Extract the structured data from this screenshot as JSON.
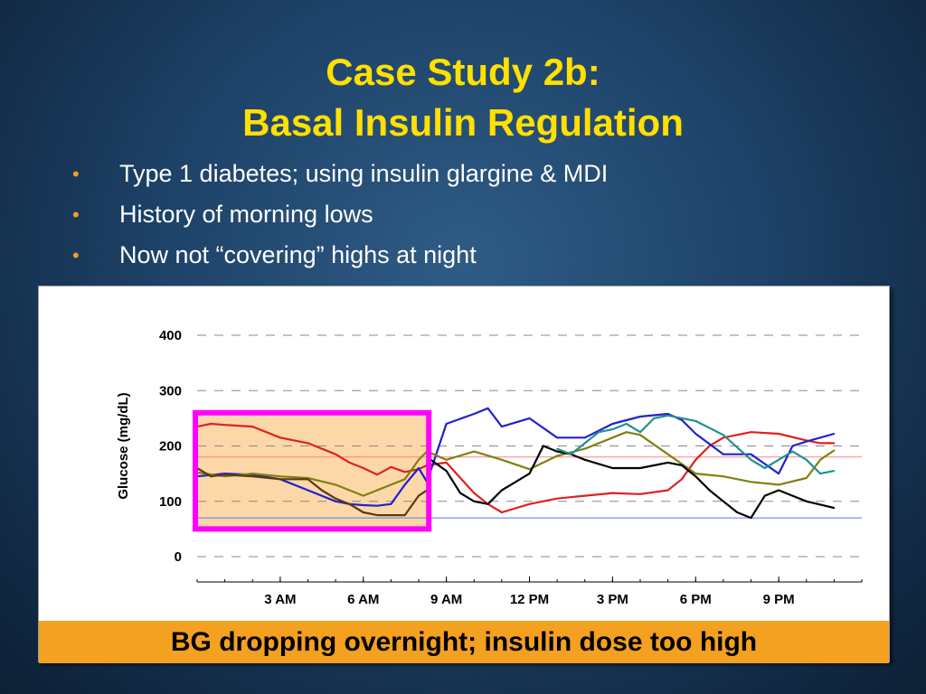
{
  "slide": {
    "title_line1": "Case Study 2b:",
    "title_line2": "Basal Insulin Regulation",
    "bullets": [
      "Type 1 diabetes; using insulin glargine & MDI",
      "History of morning lows",
      "Now not “covering” highs at night"
    ],
    "bullet_symbol": "•",
    "caption": "BG dropping overnight; insulin dose too high",
    "colors": {
      "title": "#ffe000",
      "bullet_text": "#ffffff",
      "bullet_symbol": "#f0a020",
      "caption_bar": "#f4a020",
      "highlight_border": "#ff00ff",
      "highlight_fill": "#fcd8a8",
      "target_upper_line": "#ff8080",
      "target_lower_line": "#6070ff"
    }
  },
  "chart_data": {
    "type": "line",
    "title": "",
    "ylabel": "Glucose  (mg/dL)",
    "xlabel": "",
    "ylim": [
      0,
      400
    ],
    "yticks": [
      0,
      100,
      200,
      300,
      400
    ],
    "xlim": [
      0,
      24
    ],
    "x_unit": "hours after midnight",
    "xticks": [
      {
        "x": 3,
        "label": "3 AM"
      },
      {
        "x": 6,
        "label": "6 AM"
      },
      {
        "x": 9,
        "label": "9 AM"
      },
      {
        "x": 12,
        "label": "12 PM"
      },
      {
        "x": 15,
        "label": "3 PM"
      },
      {
        "x": 18,
        "label": "6 PM"
      },
      {
        "x": 21,
        "label": "9 PM"
      }
    ],
    "grid": "horizontal dashed",
    "target_range": [
      70,
      180
    ],
    "highlight_region": {
      "x": [
        0,
        8.3
      ],
      "y": [
        50,
        260
      ]
    },
    "series": [
      {
        "color": "#e02020",
        "x": [
          0,
          0.5,
          1,
          2,
          3,
          4,
          5,
          5.5,
          6,
          6.5,
          7,
          7.5,
          8,
          8.3,
          9,
          10,
          10.5,
          11,
          12,
          13,
          14,
          15,
          16,
          17,
          17.5,
          18,
          18.5,
          19,
          20,
          21,
          22,
          22.5,
          23
        ],
        "values": [
          235,
          240,
          238,
          235,
          215,
          205,
          185,
          170,
          160,
          148,
          162,
          153,
          158,
          165,
          170,
          115,
          95,
          80,
          95,
          105,
          110,
          115,
          113,
          120,
          140,
          175,
          200,
          215,
          225,
          222,
          210,
          205,
          205
        ]
      },
      {
        "color": "#2020d0",
        "x": [
          0,
          1,
          2,
          3,
          4,
          5,
          5.5,
          6,
          6.5,
          7,
          7.5,
          8,
          8.3,
          9,
          10,
          10.5,
          11,
          12,
          13,
          14,
          15,
          16,
          17,
          17.5,
          18,
          19,
          20,
          21,
          21.5,
          22,
          23
        ],
        "values": [
          145,
          150,
          148,
          140,
          120,
          100,
          95,
          93,
          92,
          95,
          130,
          160,
          135,
          240,
          258,
          268,
          235,
          250,
          215,
          215,
          240,
          253,
          258,
          247,
          222,
          185,
          185,
          150,
          200,
          208,
          222
        ]
      },
      {
        "color": "#808010",
        "x": [
          0,
          1,
          2,
          3,
          4,
          5,
          5.5,
          6,
          6.5,
          7,
          7.5,
          8,
          8.3,
          9,
          10,
          11,
          12,
          13,
          14,
          15,
          15.5,
          16,
          17,
          18,
          19,
          20,
          21,
          22,
          22.5,
          23
        ],
        "values": [
          152,
          145,
          150,
          145,
          142,
          130,
          120,
          110,
          120,
          130,
          140,
          175,
          190,
          175,
          190,
          175,
          158,
          182,
          195,
          215,
          225,
          220,
          185,
          150,
          145,
          135,
          130,
          142,
          175,
          192
        ]
      },
      {
        "color": "#5a3a10",
        "x": [
          0,
          0.5,
          1,
          2,
          3,
          4,
          4.5,
          5,
          5.5,
          6,
          6.5,
          7,
          7.5,
          8,
          8.3
        ],
        "values": [
          160,
          145,
          148,
          145,
          140,
          140,
          120,
          105,
          95,
          80,
          75,
          75,
          75,
          110,
          120
        ]
      },
      {
        "color": "#000000",
        "x": [
          8.3,
          9,
          9.5,
          10,
          10.5,
          11,
          11.5,
          12,
          12.5,
          13,
          13.5,
          14,
          15,
          16,
          17,
          17.5,
          18,
          18.5,
          19,
          19.5,
          20,
          20.5,
          21,
          22,
          23
        ],
        "values": [
          180,
          155,
          115,
          100,
          95,
          120,
          135,
          150,
          200,
          190,
          185,
          175,
          160,
          160,
          170,
          165,
          145,
          120,
          100,
          80,
          70,
          110,
          120,
          100,
          88
        ]
      },
      {
        "color": "#209090",
        "x": [
          13,
          13.5,
          14,
          14.5,
          15,
          15.5,
          16,
          16.5,
          17,
          18,
          19,
          20,
          20.5,
          21,
          21.5,
          22,
          22.5,
          23
        ],
        "values": [
          195,
          185,
          205,
          225,
          230,
          240,
          225,
          250,
          255,
          245,
          220,
          175,
          160,
          175,
          190,
          175,
          150,
          155
        ]
      }
    ]
  }
}
